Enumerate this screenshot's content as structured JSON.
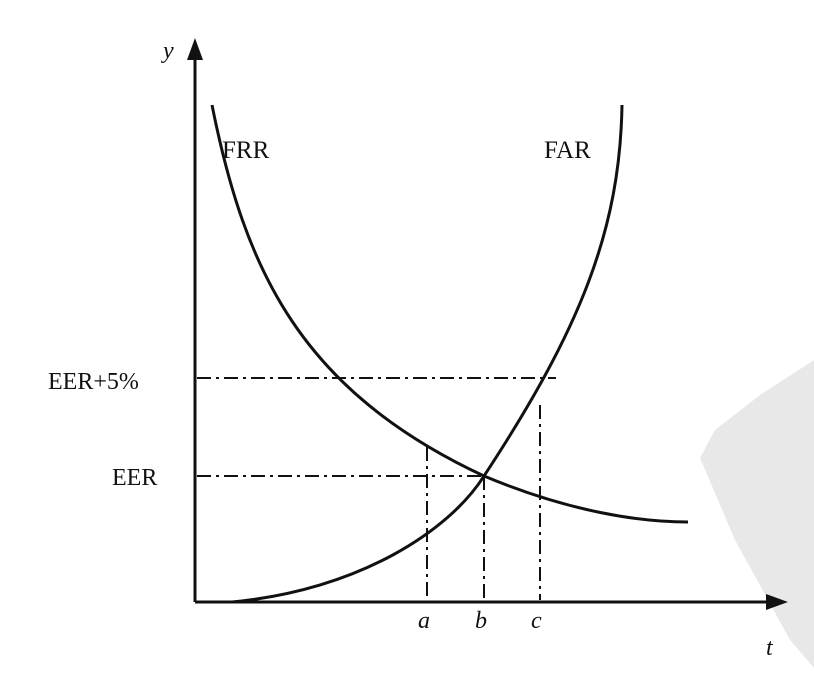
{
  "diagram": {
    "axes": {
      "y_label": "y",
      "x_label": "t"
    },
    "curves": [
      {
        "id": "frr",
        "label": "FRR"
      },
      {
        "id": "far",
        "label": "FAR"
      }
    ],
    "levels": [
      {
        "id": "eer5",
        "label": "EER+5%"
      },
      {
        "id": "eer",
        "label": "EER"
      }
    ],
    "markers": [
      {
        "id": "a",
        "label": "a"
      },
      {
        "id": "b",
        "label": "b"
      },
      {
        "id": "c",
        "label": "c"
      }
    ],
    "colors": {
      "ink": "#111111",
      "background": "#ffffff",
      "watermark": "#e6e6e6"
    }
  }
}
